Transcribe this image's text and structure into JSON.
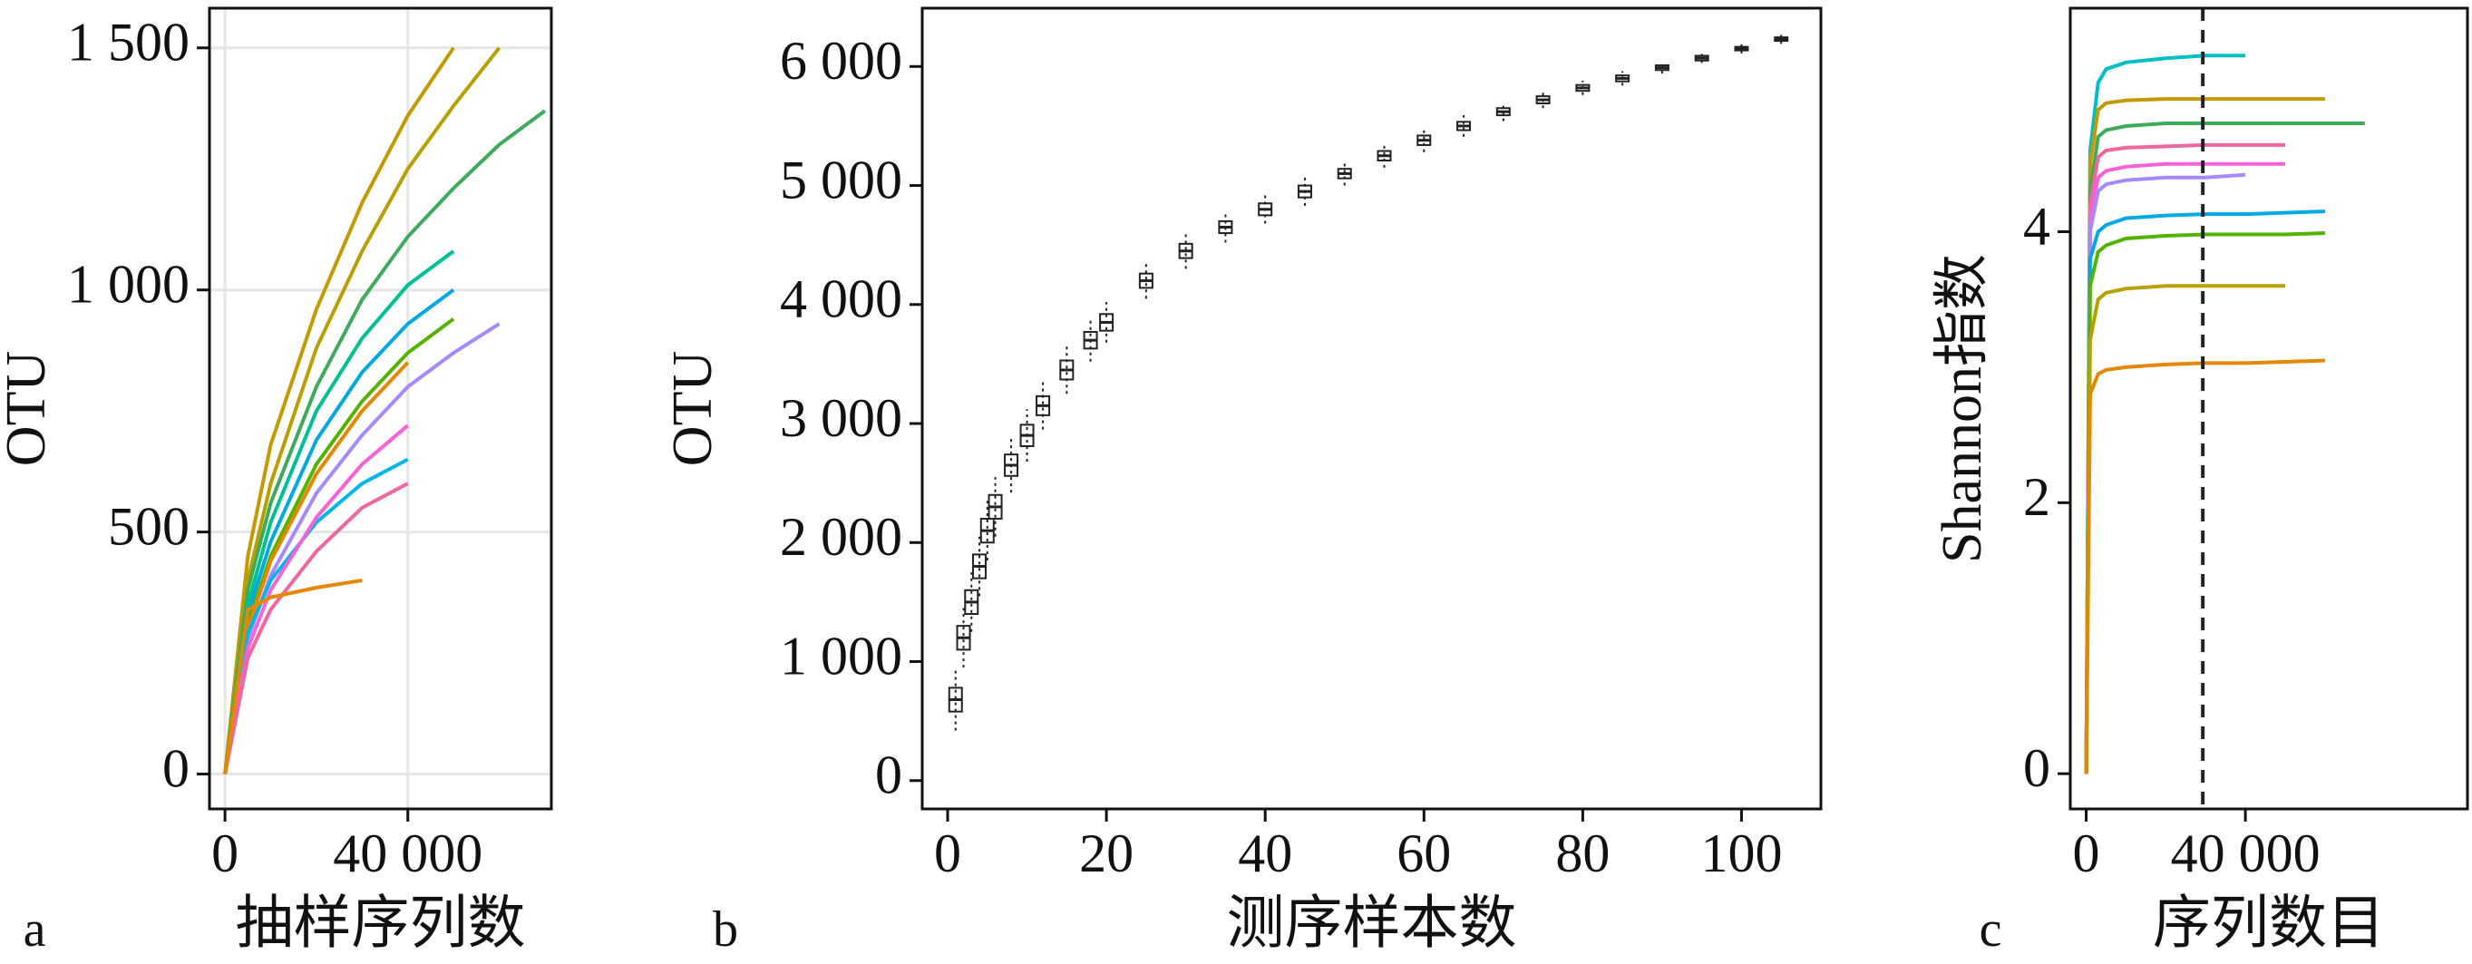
{
  "chart_data": [
    {
      "type": "line",
      "panel_label": "a",
      "xlabel": "抽样序列数",
      "ylabel": "OTU",
      "grid": true,
      "xlim": [
        -3400,
        71400
      ],
      "ylim": [
        -72,
        1582
      ],
      "xticks": [
        0,
        {
          "value": 40000,
          "label": "40 000"
        }
      ],
      "yticks": [
        0,
        500,
        {
          "value": 1000,
          "label": "1 000"
        },
        {
          "value": 1500,
          "label": "1 500"
        }
      ],
      "x": [
        0,
        5000,
        10000,
        20000,
        30000,
        40000,
        50000,
        60000,
        70000
      ],
      "series": [
        {
          "color": "#C49A00",
          "values": [
            0,
            450,
            680,
            960,
            1180,
            1360,
            1500,
            null,
            null
          ]
        },
        {
          "color": "#B8A000",
          "values": [
            0,
            400,
            600,
            880,
            1080,
            1250,
            1380,
            1500,
            null
          ]
        },
        {
          "color": "#3DAA5C",
          "values": [
            0,
            380,
            560,
            800,
            980,
            1110,
            1210,
            1300,
            1370
          ]
        },
        {
          "color": "#00C094",
          "values": [
            0,
            350,
            520,
            750,
            900,
            1010,
            1080,
            null,
            null
          ]
        },
        {
          "color": "#00A9E0",
          "values": [
            0,
            330,
            480,
            690,
            830,
            930,
            1000,
            null,
            null
          ]
        },
        {
          "color": "#53B400",
          "values": [
            0,
            310,
            450,
            640,
            770,
            870,
            940,
            null,
            null
          ]
        },
        {
          "color": "#E58700",
          "values": [
            0,
            300,
            440,
            620,
            750,
            850,
            null,
            null,
            null
          ]
        },
        {
          "color": "#A58AFF",
          "values": [
            0,
            280,
            410,
            580,
            700,
            800,
            870,
            930,
            null
          ]
        },
        {
          "color": "#00B6EB",
          "values": [
            0,
            290,
            400,
            520,
            600,
            650,
            null,
            null,
            null
          ]
        },
        {
          "color": "#FB61D7",
          "values": [
            0,
            260,
            380,
            530,
            640,
            720,
            null,
            null,
            null
          ]
        },
        {
          "color": "#F066A0",
          "values": [
            0,
            240,
            340,
            460,
            550,
            600,
            null,
            null,
            null
          ]
        },
        {
          "color": "#E58700",
          "values": [
            0,
            340,
            365,
            385,
            400,
            null,
            null,
            null,
            null
          ]
        }
      ]
    },
    {
      "type": "box",
      "panel_label": "b",
      "xlabel": "测序样本数",
      "ylabel": "OTU",
      "grid": false,
      "xlim": [
        -3.2,
        110
      ],
      "ylim": [
        -238,
        6490
      ],
      "xticks": [
        0,
        20,
        40,
        60,
        80,
        100
      ],
      "yticks": [
        0,
        {
          "value": 1000,
          "label": "1 000"
        },
        {
          "value": 2000,
          "label": "2 000"
        },
        {
          "value": 3000,
          "label": "3 000"
        },
        {
          "value": 4000,
          "label": "4 000"
        },
        {
          "value": 5000,
          "label": "5 000"
        },
        {
          "value": 6000,
          "label": "6 000"
        }
      ],
      "x": [
        1,
        2,
        3,
        4,
        5,
        6,
        8,
        10,
        12,
        15,
        18,
        20,
        25,
        30,
        35,
        40,
        45,
        50,
        55,
        60,
        65,
        70,
        75,
        80,
        85,
        90,
        95,
        100,
        105
      ],
      "low": [
        420,
        950,
        1250,
        1550,
        1850,
        2050,
        2420,
        2680,
        2950,
        3250,
        3520,
        3680,
        4050,
        4300,
        4520,
        4680,
        4830,
        5000,
        5150,
        5280,
        5410,
        5540,
        5650,
        5760,
        5840,
        5940,
        6030,
        6110,
        6190
      ],
      "q1": [
        580,
        1100,
        1400,
        1700,
        2000,
        2200,
        2560,
        2810,
        3070,
        3370,
        3630,
        3780,
        4140,
        4390,
        4600,
        4750,
        4900,
        5060,
        5210,
        5340,
        5465,
        5590,
        5690,
        5795,
        5875,
        5970,
        6050,
        6135,
        6215
      ],
      "median": [
        680,
        1200,
        1500,
        1800,
        2100,
        2300,
        2650,
        2900,
        3150,
        3450,
        3700,
        3850,
        4200,
        4450,
        4650,
        4800,
        4950,
        5100,
        5250,
        5380,
        5500,
        5620,
        5720,
        5820,
        5900,
        5990,
        6070,
        6150,
        6230
      ],
      "q3": [
        780,
        1300,
        1600,
        1900,
        2200,
        2400,
        2740,
        2990,
        3230,
        3530,
        3770,
        3920,
        4260,
        4510,
        4700,
        4850,
        5000,
        5140,
        5290,
        5420,
        5535,
        5650,
        5750,
        5845,
        5925,
        6010,
        6090,
        6165,
        6245
      ],
      "high": [
        940,
        1450,
        1750,
        2050,
        2350,
        2550,
        2880,
        3120,
        3350,
        3650,
        3880,
        4020,
        4350,
        4600,
        4780,
        4920,
        5070,
        5200,
        5350,
        5480,
        5590,
        5700,
        5790,
        5880,
        5960,
        6040,
        6110,
        6190,
        6270
      ],
      "color": "#222222"
    },
    {
      "type": "line",
      "panel_label": "c",
      "xlabel": "序列数目",
      "ylabel": "Shannon指数",
      "grid": false,
      "xlim": [
        -4000,
        95800
      ],
      "ylim": [
        -0.26,
        5.65
      ],
      "xticks": [
        0,
        {
          "value": 40000,
          "label": "40 000"
        }
      ],
      "yticks": [
        0,
        2,
        4
      ],
      "vline": 29300,
      "x": [
        0,
        1000,
        3000,
        5000,
        10000,
        20000,
        30000,
        40000,
        50000,
        60000,
        70000
      ],
      "series": [
        {
          "color": "#00BFC4",
          "values": [
            0,
            4.6,
            5.1,
            5.2,
            5.25,
            5.28,
            5.3,
            5.3,
            null,
            null,
            null
          ]
        },
        {
          "color": "#C49A00",
          "values": [
            0,
            4.5,
            4.9,
            4.95,
            4.97,
            4.98,
            4.98,
            4.98,
            4.98,
            4.98,
            null
          ]
        },
        {
          "color": "#3DAA5C",
          "values": [
            0,
            4.3,
            4.7,
            4.75,
            4.78,
            4.8,
            4.8,
            4.8,
            4.8,
            4.8,
            4.8
          ]
        },
        {
          "color": "#F066A0",
          "values": [
            0,
            4.2,
            4.55,
            4.6,
            4.62,
            4.63,
            4.64,
            4.64,
            4.64,
            null,
            null
          ]
        },
        {
          "color": "#FB61D7",
          "values": [
            0,
            4.1,
            4.4,
            4.45,
            4.48,
            4.5,
            4.5,
            4.5,
            4.5,
            null,
            null
          ]
        },
        {
          "color": "#A58AFF",
          "values": [
            0,
            4.0,
            4.3,
            4.35,
            4.38,
            4.4,
            4.4,
            4.42,
            null,
            null,
            null
          ]
        },
        {
          "color": "#00A9E0",
          "values": [
            0,
            3.8,
            4.0,
            4.05,
            4.1,
            4.12,
            4.13,
            4.13,
            4.14,
            4.15,
            null
          ]
        },
        {
          "color": "#53B400",
          "values": [
            0,
            3.6,
            3.85,
            3.9,
            3.95,
            3.97,
            3.98,
            3.98,
            3.98,
            3.99,
            null
          ]
        },
        {
          "color": "#B8A000",
          "values": [
            0,
            3.2,
            3.5,
            3.55,
            3.58,
            3.6,
            3.6,
            3.6,
            3.6,
            null,
            null
          ]
        },
        {
          "color": "#E58700",
          "values": [
            0,
            2.8,
            2.95,
            2.98,
            3.0,
            3.02,
            3.03,
            3.03,
            3.04,
            3.05,
            null
          ]
        }
      ]
    }
  ]
}
